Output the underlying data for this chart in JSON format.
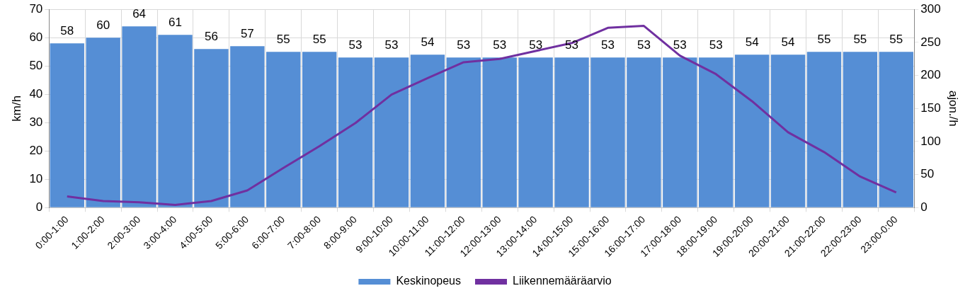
{
  "chart_data": {
    "type": "bar",
    "xlabel": null,
    "ylabel": "km/h",
    "y2label": "ajon./h",
    "categories": [
      "0:00-1:00",
      "1:00-2:00",
      "2:00-3:00",
      "3:00-4:00",
      "4:00-5:00",
      "5:00-6:00",
      "6:00-7:00",
      "7:00-8:00",
      "8:00-9:00",
      "9:00-10:00",
      "10:00-11:00",
      "11:00-12:00",
      "12:00-13:00",
      "13:00-14:00",
      "14:00-15:00",
      "15:00-16:00",
      "16:00-17:00",
      "17:00-18:00",
      "18:00-19:00",
      "19:00-20:00",
      "20:00-21:00",
      "21:00-22:00",
      "22:00-23:00",
      "23:00-0:00"
    ],
    "series": [
      {
        "name": "Keskinopeus",
        "color": "#558ed5",
        "values": [
          58,
          60,
          64,
          61,
          56,
          57,
          55,
          55,
          53,
          53,
          54,
          53,
          53,
          53,
          53,
          53,
          53,
          53,
          53,
          54,
          54,
          55,
          55,
          55
        ],
        "value_labels": [
          "58",
          "60",
          "64",
          "61",
          "56",
          "57",
          "55",
          "55",
          "53",
          "53",
          "54",
          "53",
          "53",
          "53",
          "53",
          "53",
          "53",
          "53",
          "53",
          "54",
          "54",
          "55",
          "55",
          "55"
        ]
      },
      {
        "name": "Liikennemääräarvio",
        "type": "line",
        "axis": "y2",
        "color": "#7030a0",
        "values": [
          17,
          10,
          8,
          4,
          10,
          26,
          60,
          93,
          128,
          171,
          196,
          220,
          225,
          237,
          249,
          272,
          275,
          230,
          202,
          161,
          114,
          84,
          47,
          23
        ]
      }
    ],
    "ylim": [
      0,
      70
    ],
    "yticks": [
      0,
      10,
      20,
      30,
      40,
      50,
      60,
      70
    ],
    "y2lim": [
      0,
      300
    ],
    "y2ticks": [
      0,
      50,
      100,
      150,
      200,
      250,
      300
    ],
    "grid": true,
    "legend": "bottom",
    "marker": "none",
    "line_style": "solid"
  }
}
